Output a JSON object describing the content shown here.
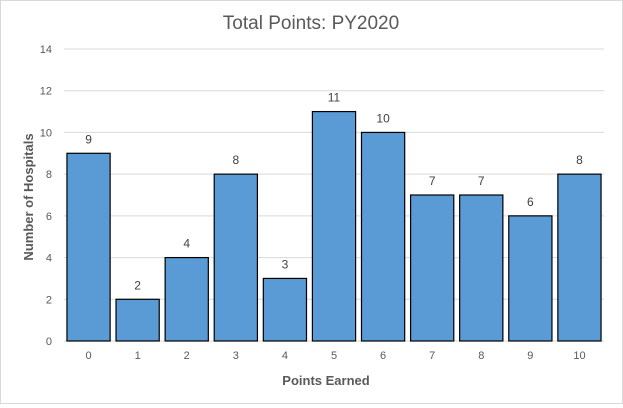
{
  "chart_data": {
    "type": "bar",
    "title": "Total Points: PY2020",
    "xlabel": "Points Earned",
    "ylabel": "Number of Hospitals",
    "categories": [
      "0",
      "1",
      "2",
      "3",
      "4",
      "5",
      "6",
      "7",
      "8",
      "9",
      "10"
    ],
    "values": [
      9,
      2,
      4,
      8,
      3,
      11,
      10,
      7,
      7,
      6,
      8
    ],
    "data_labels": [
      "9",
      "2",
      "4",
      "8",
      "3",
      "11",
      "10",
      "7",
      "7",
      "6",
      "8"
    ],
    "ylim": [
      0,
      14
    ],
    "y_ticks": [
      0,
      2,
      4,
      6,
      8,
      10,
      12,
      14
    ],
    "y_tick_labels": [
      "0",
      "2",
      "4",
      "6",
      "8",
      "10",
      "12",
      "14"
    ],
    "grid": true,
    "legend": "none",
    "colors": {
      "bar_fill": "#5b9bd5",
      "bar_stroke": "#000000",
      "grid": "#d9d9d9",
      "axis_text": "#595959",
      "title_text": "#595959"
    }
  }
}
